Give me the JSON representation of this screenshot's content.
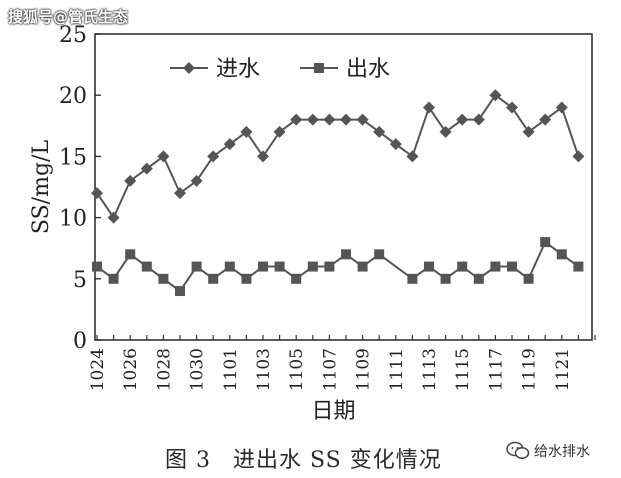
{
  "watermark": "搜狐号@管氏生态",
  "caption": {
    "figure_no": "图 3",
    "title": "进出水 SS 变化情况"
  },
  "badge": {
    "text": "给水排水",
    "icon": "wechat-icon"
  },
  "chart_data": {
    "type": "line",
    "ylabel": "SS/mg/L",
    "xlabel": "日期",
    "ylim": [
      0,
      25
    ],
    "yticks": [
      0,
      5,
      10,
      15,
      20,
      25
    ],
    "x_tick_labels": [
      "1024",
      "1026",
      "1028",
      "1030",
      "1101",
      "1103",
      "1105",
      "1107",
      "1109",
      "1111",
      "1113",
      "1115",
      "1117",
      "1119",
      "1121"
    ],
    "legend_position": "top-left inside",
    "grid": false,
    "series": [
      {
        "name": "进水",
        "marker": "diamond",
        "color": "#555555",
        "values": [
          12,
          10,
          13,
          14,
          15,
          12,
          13,
          15,
          16,
          17,
          15,
          17,
          18,
          18,
          18,
          18,
          18,
          17,
          16,
          15,
          19,
          17,
          18,
          18,
          20,
          19,
          17,
          18,
          19,
          15
        ]
      },
      {
        "name": "出水",
        "marker": "square",
        "color": "#555555",
        "values": [
          6,
          5,
          7,
          6,
          5,
          4,
          6,
          5,
          6,
          5,
          6,
          6,
          5,
          6,
          6,
          7,
          6,
          7,
          null,
          5,
          6,
          5,
          6,
          5,
          6,
          6,
          5,
          8,
          7,
          6
        ]
      }
    ]
  }
}
